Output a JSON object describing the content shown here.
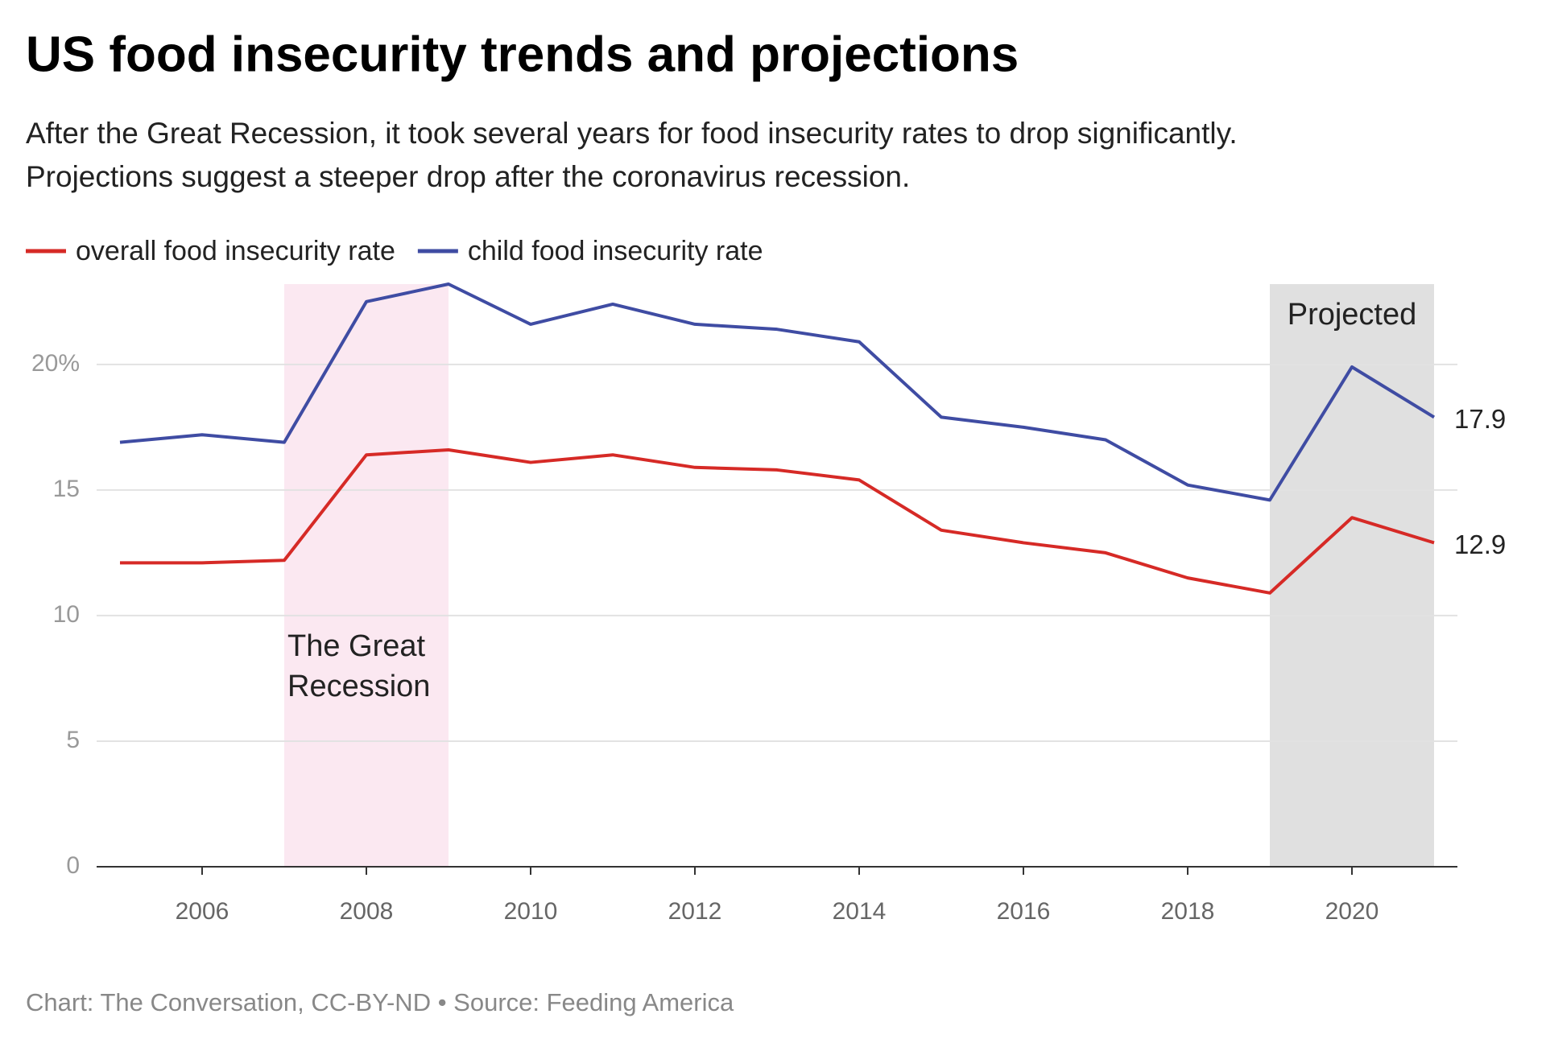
{
  "chart_data": {
    "type": "line",
    "title": "US food insecurity trends and projections",
    "subtitle_lines": [
      "After the Great Recession, it took several years for food insecurity rates to drop significantly.",
      "Projections suggest a steeper drop after the coronavirus recession."
    ],
    "x": [
      2005,
      2006,
      2007,
      2008,
      2009,
      2010,
      2011,
      2012,
      2013,
      2014,
      2015,
      2016,
      2017,
      2018,
      2019,
      2020,
      2021
    ],
    "series": [
      {
        "name": "overall food insecurity rate",
        "color": "#d62a26",
        "values": [
          12.1,
          12.1,
          12.2,
          16.4,
          16.6,
          16.1,
          16.4,
          15.9,
          15.8,
          15.4,
          13.4,
          12.9,
          12.5,
          11.5,
          10.9,
          13.9,
          12.9
        ]
      },
      {
        "name": "child food insecurity rate",
        "color": "#3f4ca3",
        "values": [
          16.9,
          17.2,
          16.9,
          22.5,
          23.2,
          21.6,
          22.4,
          21.6,
          21.4,
          20.9,
          17.9,
          17.5,
          17.0,
          15.2,
          14.6,
          19.9,
          17.9
        ]
      }
    ],
    "xlim": [
      2005,
      2021
    ],
    "xticks": [
      2006,
      2008,
      2010,
      2012,
      2014,
      2016,
      2018,
      2020
    ],
    "ylim": [
      0,
      23.2
    ],
    "yticks": [
      0,
      5,
      10,
      15,
      {
        "value": 20,
        "label": "20%"
      }
    ],
    "grid": true,
    "shaded_regions": [
      {
        "x_start": 2007,
        "x_end": 2009,
        "color": "#fbe8f1",
        "label_lines": [
          "The Great",
          "Recession"
        ]
      },
      {
        "x_start": 2019,
        "x_end": 2021,
        "color": "#e0e0e0",
        "label_lines": [
          "Projected"
        ]
      }
    ],
    "footer": "Chart: The Conversation, CC-BY-ND • Source: Feeding America"
  }
}
